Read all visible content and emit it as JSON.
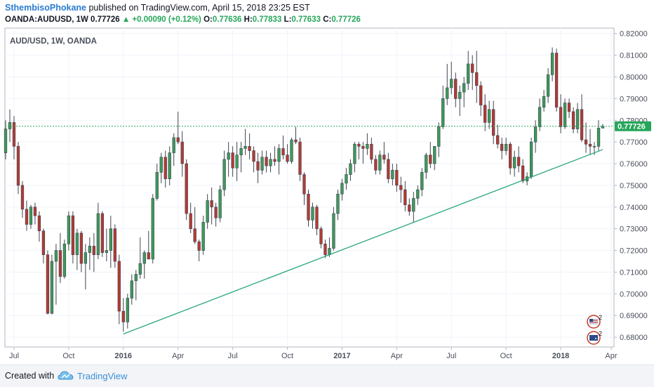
{
  "header": {
    "author": "SthembisoPhokane",
    "published_text": "published on TradingView.com, April 15, 2018 23:25 EST",
    "symbol": "OANDA:AUDUSD, 1W",
    "last": "0.77726",
    "change": "▲ +0.00090 (+0.12%)",
    "o_label": "O:",
    "o_value": "0.77636",
    "h_label": "H:",
    "h_value": "0.77833",
    "l_label": "L:",
    "l_value": "0.77633",
    "c_label": "C:",
    "c_value": "0.77726"
  },
  "footer": {
    "created_with": "Created with",
    "brand": "TradingView"
  },
  "colors": {
    "up": "#3d9a5a",
    "down": "#b43a34",
    "trendline": "#26a67a",
    "price_line": "#26a65b"
  },
  "chart_data": {
    "type": "candlestick",
    "title": "AUD/USD, 1W, OANDA",
    "ylim": [
      0.6755,
      0.8225
    ],
    "y_ticks": [
      "0.82000",
      "0.81000",
      "0.80000",
      "0.79000",
      "0.78000",
      "0.77000",
      "0.76000",
      "0.75000",
      "0.74000",
      "0.73000",
      "0.72000",
      "0.71000",
      "0.70000",
      "0.69000",
      "0.68000"
    ],
    "x_ticks": [
      "Jul",
      "Oct",
      "2016",
      "Apr",
      "Jul",
      "Oct",
      "2017",
      "Apr",
      "Jul",
      "Oct",
      "2018",
      "Apr"
    ],
    "last_price_label": "0.77726",
    "trendline": [
      {
        "date": "2016-01-15",
        "value": 0.6815
      },
      {
        "date": "2018-04-13",
        "value": 0.7665
      }
    ],
    "candles_ohlc": [
      [
        0.765,
        0.78,
        0.762,
        0.776
      ],
      [
        0.776,
        0.785,
        0.77,
        0.779
      ],
      [
        0.779,
        0.782,
        0.762,
        0.768
      ],
      [
        0.768,
        0.77,
        0.746,
        0.75
      ],
      [
        0.75,
        0.752,
        0.735,
        0.739
      ],
      [
        0.739,
        0.743,
        0.729,
        0.732
      ],
      [
        0.732,
        0.741,
        0.73,
        0.74
      ],
      [
        0.74,
        0.742,
        0.732,
        0.736
      ],
      [
        0.736,
        0.738,
        0.724,
        0.729
      ],
      [
        0.729,
        0.73,
        0.714,
        0.718
      ],
      [
        0.718,
        0.72,
        0.6905,
        0.691
      ],
      [
        0.691,
        0.718,
        0.6905,
        0.715
      ],
      [
        0.715,
        0.723,
        0.695,
        0.72
      ],
      [
        0.72,
        0.728,
        0.705,
        0.708
      ],
      [
        0.708,
        0.725,
        0.707,
        0.723
      ],
      [
        0.723,
        0.738,
        0.72,
        0.736
      ],
      [
        0.736,
        0.738,
        0.714,
        0.718
      ],
      [
        0.718,
        0.73,
        0.711,
        0.728
      ],
      [
        0.728,
        0.729,
        0.71,
        0.714
      ],
      [
        0.714,
        0.723,
        0.702,
        0.719
      ],
      [
        0.719,
        0.726,
        0.711,
        0.722
      ],
      [
        0.722,
        0.728,
        0.71,
        0.718
      ],
      [
        0.718,
        0.742,
        0.716,
        0.737
      ],
      [
        0.737,
        0.738,
        0.717,
        0.719
      ],
      [
        0.719,
        0.73,
        0.715,
        0.72
      ],
      [
        0.72,
        0.736,
        0.712,
        0.73
      ],
      [
        0.73,
        0.732,
        0.712,
        0.715
      ],
      [
        0.715,
        0.718,
        0.686,
        0.692
      ],
      [
        0.692,
        0.698,
        0.6826,
        0.687
      ],
      [
        0.687,
        0.7,
        0.684,
        0.698
      ],
      [
        0.698,
        0.709,
        0.695,
        0.706
      ],
      [
        0.706,
        0.711,
        0.697,
        0.709
      ],
      [
        0.709,
        0.726,
        0.707,
        0.714
      ],
      [
        0.714,
        0.72,
        0.707,
        0.719
      ],
      [
        0.719,
        0.729,
        0.717,
        0.716
      ],
      [
        0.716,
        0.746,
        0.714,
        0.744
      ],
      [
        0.744,
        0.76,
        0.743,
        0.756
      ],
      [
        0.756,
        0.765,
        0.751,
        0.763
      ],
      [
        0.763,
        0.766,
        0.749,
        0.753
      ],
      [
        0.753,
        0.768,
        0.75,
        0.765
      ],
      [
        0.765,
        0.774,
        0.759,
        0.772
      ],
      [
        0.772,
        0.784,
        0.769,
        0.77
      ],
      [
        0.77,
        0.775,
        0.754,
        0.76
      ],
      [
        0.76,
        0.762,
        0.734,
        0.737
      ],
      [
        0.737,
        0.742,
        0.728,
        0.73
      ],
      [
        0.73,
        0.74,
        0.723,
        0.724
      ],
      [
        0.724,
        0.725,
        0.715,
        0.72
      ],
      [
        0.72,
        0.736,
        0.718,
        0.733
      ],
      [
        0.733,
        0.746,
        0.73,
        0.743
      ],
      [
        0.743,
        0.749,
        0.732,
        0.74
      ],
      [
        0.74,
        0.742,
        0.731,
        0.735
      ],
      [
        0.735,
        0.75,
        0.733,
        0.748
      ],
      [
        0.748,
        0.766,
        0.745,
        0.762
      ],
      [
        0.762,
        0.77,
        0.754,
        0.765
      ],
      [
        0.765,
        0.768,
        0.754,
        0.758
      ],
      [
        0.758,
        0.77,
        0.752,
        0.764
      ],
      [
        0.764,
        0.77,
        0.756,
        0.767
      ],
      [
        0.767,
        0.776,
        0.764,
        0.768
      ],
      [
        0.768,
        0.774,
        0.762,
        0.766
      ],
      [
        0.766,
        0.768,
        0.756,
        0.761
      ],
      [
        0.761,
        0.765,
        0.751,
        0.757
      ],
      [
        0.757,
        0.766,
        0.755,
        0.763
      ],
      [
        0.763,
        0.766,
        0.756,
        0.759
      ],
      [
        0.759,
        0.765,
        0.756,
        0.762
      ],
      [
        0.762,
        0.768,
        0.759,
        0.761
      ],
      [
        0.761,
        0.769,
        0.755,
        0.767
      ],
      [
        0.767,
        0.773,
        0.762,
        0.764
      ],
      [
        0.764,
        0.769,
        0.76,
        0.761
      ],
      [
        0.761,
        0.772,
        0.76,
        0.771
      ],
      [
        0.771,
        0.777,
        0.769,
        0.77
      ],
      [
        0.77,
        0.772,
        0.752,
        0.755
      ],
      [
        0.755,
        0.756,
        0.741,
        0.746
      ],
      [
        0.746,
        0.748,
        0.731,
        0.734
      ],
      [
        0.734,
        0.742,
        0.73,
        0.74
      ],
      [
        0.74,
        0.741,
        0.727,
        0.73
      ],
      [
        0.73,
        0.731,
        0.721,
        0.723
      ],
      [
        0.723,
        0.725,
        0.7165,
        0.718
      ],
      [
        0.718,
        0.726,
        0.717,
        0.721
      ],
      [
        0.721,
        0.74,
        0.72,
        0.737
      ],
      [
        0.737,
        0.748,
        0.734,
        0.746
      ],
      [
        0.746,
        0.753,
        0.743,
        0.751
      ],
      [
        0.751,
        0.758,
        0.748,
        0.755
      ],
      [
        0.755,
        0.762,
        0.752,
        0.76
      ],
      [
        0.76,
        0.77,
        0.756,
        0.769
      ],
      [
        0.769,
        0.77,
        0.762,
        0.768
      ],
      [
        0.768,
        0.77,
        0.76,
        0.767
      ],
      [
        0.767,
        0.774,
        0.764,
        0.769
      ],
      [
        0.769,
        0.772,
        0.76,
        0.762
      ],
      [
        0.762,
        0.764,
        0.755,
        0.757
      ],
      [
        0.757,
        0.766,
        0.755,
        0.764
      ],
      [
        0.764,
        0.77,
        0.76,
        0.762
      ],
      [
        0.762,
        0.765,
        0.751,
        0.753
      ],
      [
        0.753,
        0.76,
        0.75,
        0.757
      ],
      [
        0.757,
        0.76,
        0.747,
        0.75
      ],
      [
        0.75,
        0.754,
        0.742,
        0.748
      ],
      [
        0.748,
        0.752,
        0.738,
        0.741
      ],
      [
        0.741,
        0.744,
        0.736,
        0.738
      ],
      [
        0.738,
        0.747,
        0.733,
        0.744
      ],
      [
        0.744,
        0.75,
        0.741,
        0.748
      ],
      [
        0.748,
        0.758,
        0.745,
        0.756
      ],
      [
        0.756,
        0.765,
        0.753,
        0.764
      ],
      [
        0.764,
        0.77,
        0.758,
        0.76
      ],
      [
        0.76,
        0.768,
        0.757,
        0.768
      ],
      [
        0.768,
        0.779,
        0.763,
        0.777
      ],
      [
        0.777,
        0.796,
        0.776,
        0.79
      ],
      [
        0.79,
        0.806,
        0.787,
        0.795
      ],
      [
        0.795,
        0.807,
        0.792,
        0.799
      ],
      [
        0.799,
        0.802,
        0.786,
        0.79
      ],
      [
        0.79,
        0.796,
        0.782,
        0.793
      ],
      [
        0.793,
        0.8,
        0.786,
        0.797
      ],
      [
        0.797,
        0.812,
        0.794,
        0.806
      ],
      [
        0.806,
        0.81,
        0.794,
        0.802
      ],
      [
        0.802,
        0.812,
        0.788,
        0.796
      ],
      [
        0.796,
        0.798,
        0.782,
        0.787
      ],
      [
        0.787,
        0.792,
        0.775,
        0.779
      ],
      [
        0.779,
        0.789,
        0.776,
        0.785
      ],
      [
        0.785,
        0.789,
        0.769,
        0.773
      ],
      [
        0.773,
        0.778,
        0.767,
        0.769
      ],
      [
        0.769,
        0.772,
        0.762,
        0.766
      ],
      [
        0.766,
        0.772,
        0.764,
        0.769
      ],
      [
        0.769,
        0.77,
        0.755,
        0.758
      ],
      [
        0.758,
        0.766,
        0.754,
        0.763
      ],
      [
        0.763,
        0.768,
        0.756,
        0.759
      ],
      [
        0.759,
        0.762,
        0.751,
        0.752
      ],
      [
        0.752,
        0.756,
        0.75,
        0.754
      ],
      [
        0.754,
        0.772,
        0.753,
        0.77
      ],
      [
        0.77,
        0.78,
        0.765,
        0.777
      ],
      [
        0.777,
        0.79,
        0.775,
        0.786
      ],
      [
        0.786,
        0.794,
        0.784,
        0.791
      ],
      [
        0.791,
        0.804,
        0.788,
        0.801
      ],
      [
        0.801,
        0.8136,
        0.798,
        0.811
      ],
      [
        0.811,
        0.813,
        0.784,
        0.786
      ],
      [
        0.786,
        0.792,
        0.774,
        0.777
      ],
      [
        0.777,
        0.79,
        0.776,
        0.788
      ],
      [
        0.788,
        0.79,
        0.781,
        0.784
      ],
      [
        0.784,
        0.786,
        0.774,
        0.776
      ],
      [
        0.776,
        0.788,
        0.774,
        0.785
      ],
      [
        0.785,
        0.792,
        0.77,
        0.771
      ],
      [
        0.771,
        0.779,
        0.765,
        0.769
      ],
      [
        0.769,
        0.776,
        0.764,
        0.768
      ],
      [
        0.768,
        0.77,
        0.764,
        0.768
      ],
      [
        0.768,
        0.78,
        0.766,
        0.7764
      ],
      [
        0.7764,
        0.7783,
        0.7763,
        0.7773
      ]
    ]
  }
}
